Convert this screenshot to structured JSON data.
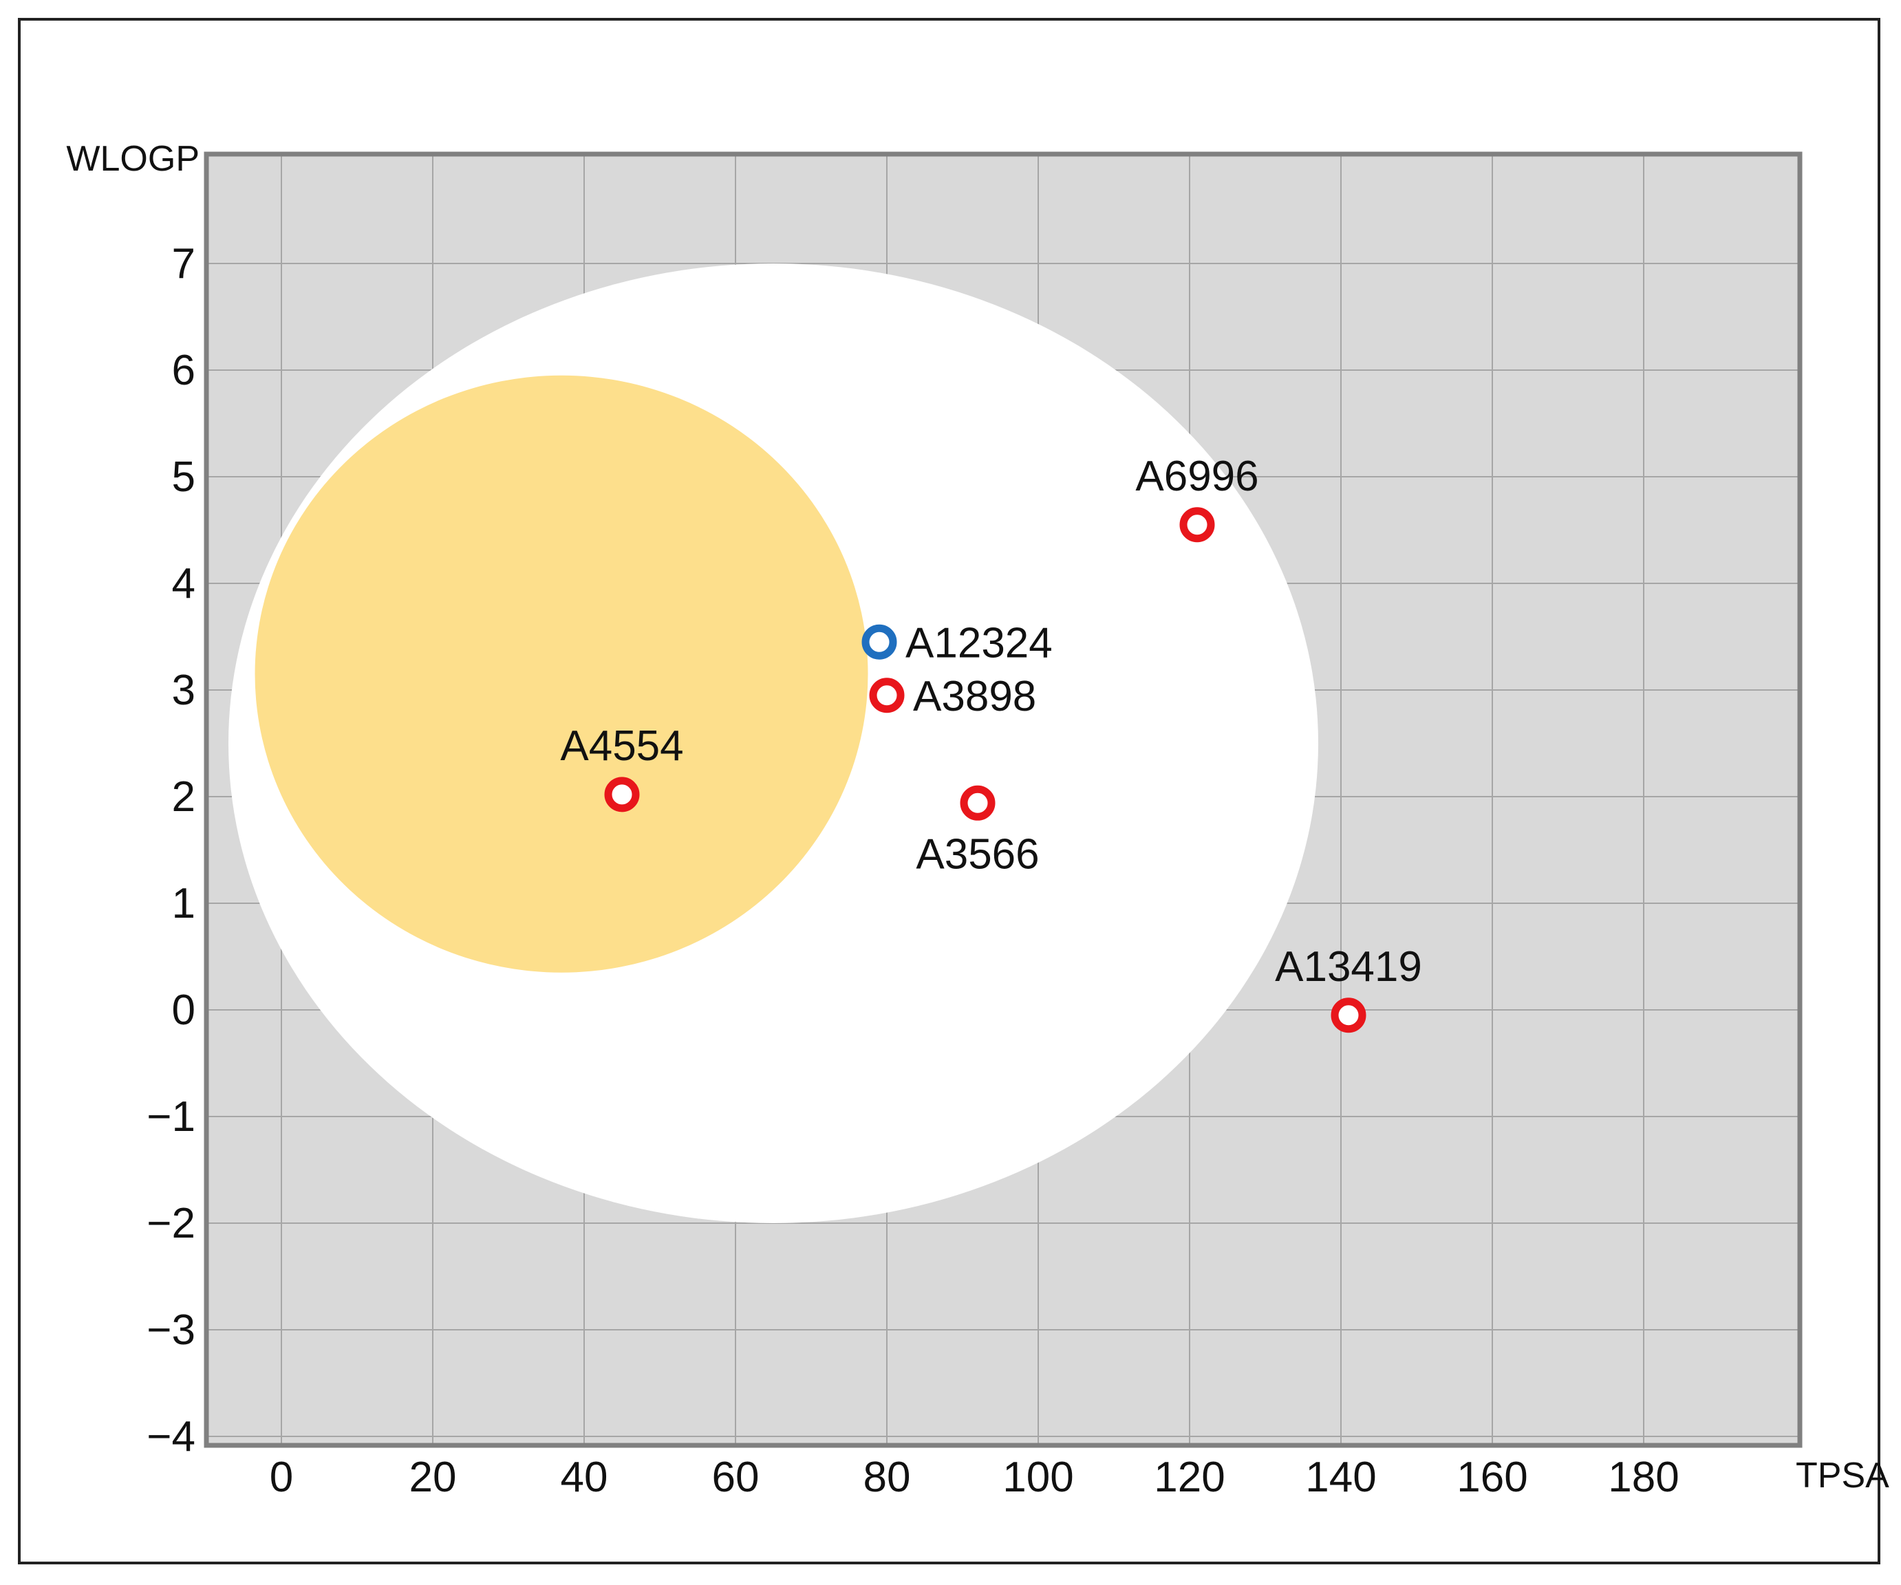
{
  "chart_data": {
    "type": "scatter",
    "title": "",
    "xlabel": "TPSA",
    "ylabel": "WLOGP",
    "xlim": [
      -10,
      200
    ],
    "ylim": [
      -4,
      7
    ],
    "x_ticks": [
      0,
      20,
      40,
      60,
      80,
      100,
      120,
      140,
      160,
      180
    ],
    "x_tick_labels": [
      "0",
      "20",
      "40",
      "60",
      "80",
      "100",
      "120",
      "140",
      "160",
      "180"
    ],
    "y_ticks": [
      7,
      6,
      5,
      4,
      3,
      2,
      1,
      0,
      -1,
      -2,
      -3,
      -4
    ],
    "y_tick_labels": [
      "7",
      "6",
      "5",
      "4",
      "3",
      "2",
      "1",
      "0",
      "−1",
      "−2",
      "−3",
      "−4"
    ],
    "grid": true,
    "regions": [
      {
        "shape": "ellipse",
        "cx": 65,
        "cy": 2.5,
        "rx": 72,
        "ry": 4.5,
        "color": "#ffffff"
      },
      {
        "shape": "ellipse",
        "cx": 37,
        "cy": 3.15,
        "rx": 40.5,
        "ry": 2.8,
        "color": "#FDDF8C"
      }
    ],
    "points": [
      {
        "label": "A12324",
        "x": 79,
        "y": 3.45,
        "color": "#1F6FBF",
        "label_position": "right"
      },
      {
        "label": "A3898",
        "x": 80,
        "y": 2.95,
        "color": "#E8161B",
        "label_position": "right"
      },
      {
        "label": "A4554",
        "x": 45,
        "y": 2.02,
        "color": "#E8161B",
        "label_position": "above"
      },
      {
        "label": "A3566",
        "x": 92,
        "y": 1.94,
        "color": "#E8161B",
        "label_position": "below"
      },
      {
        "label": "A6996",
        "x": 121,
        "y": 4.55,
        "color": "#E8161B",
        "label_position": "above"
      },
      {
        "label": "A13419",
        "x": 141,
        "y": -0.05,
        "color": "#E8161B",
        "label_position": "above"
      }
    ],
    "colors": {
      "plot_background": "#D9D9D9",
      "grid": "#A6A6A6",
      "frame": "#808080"
    }
  }
}
